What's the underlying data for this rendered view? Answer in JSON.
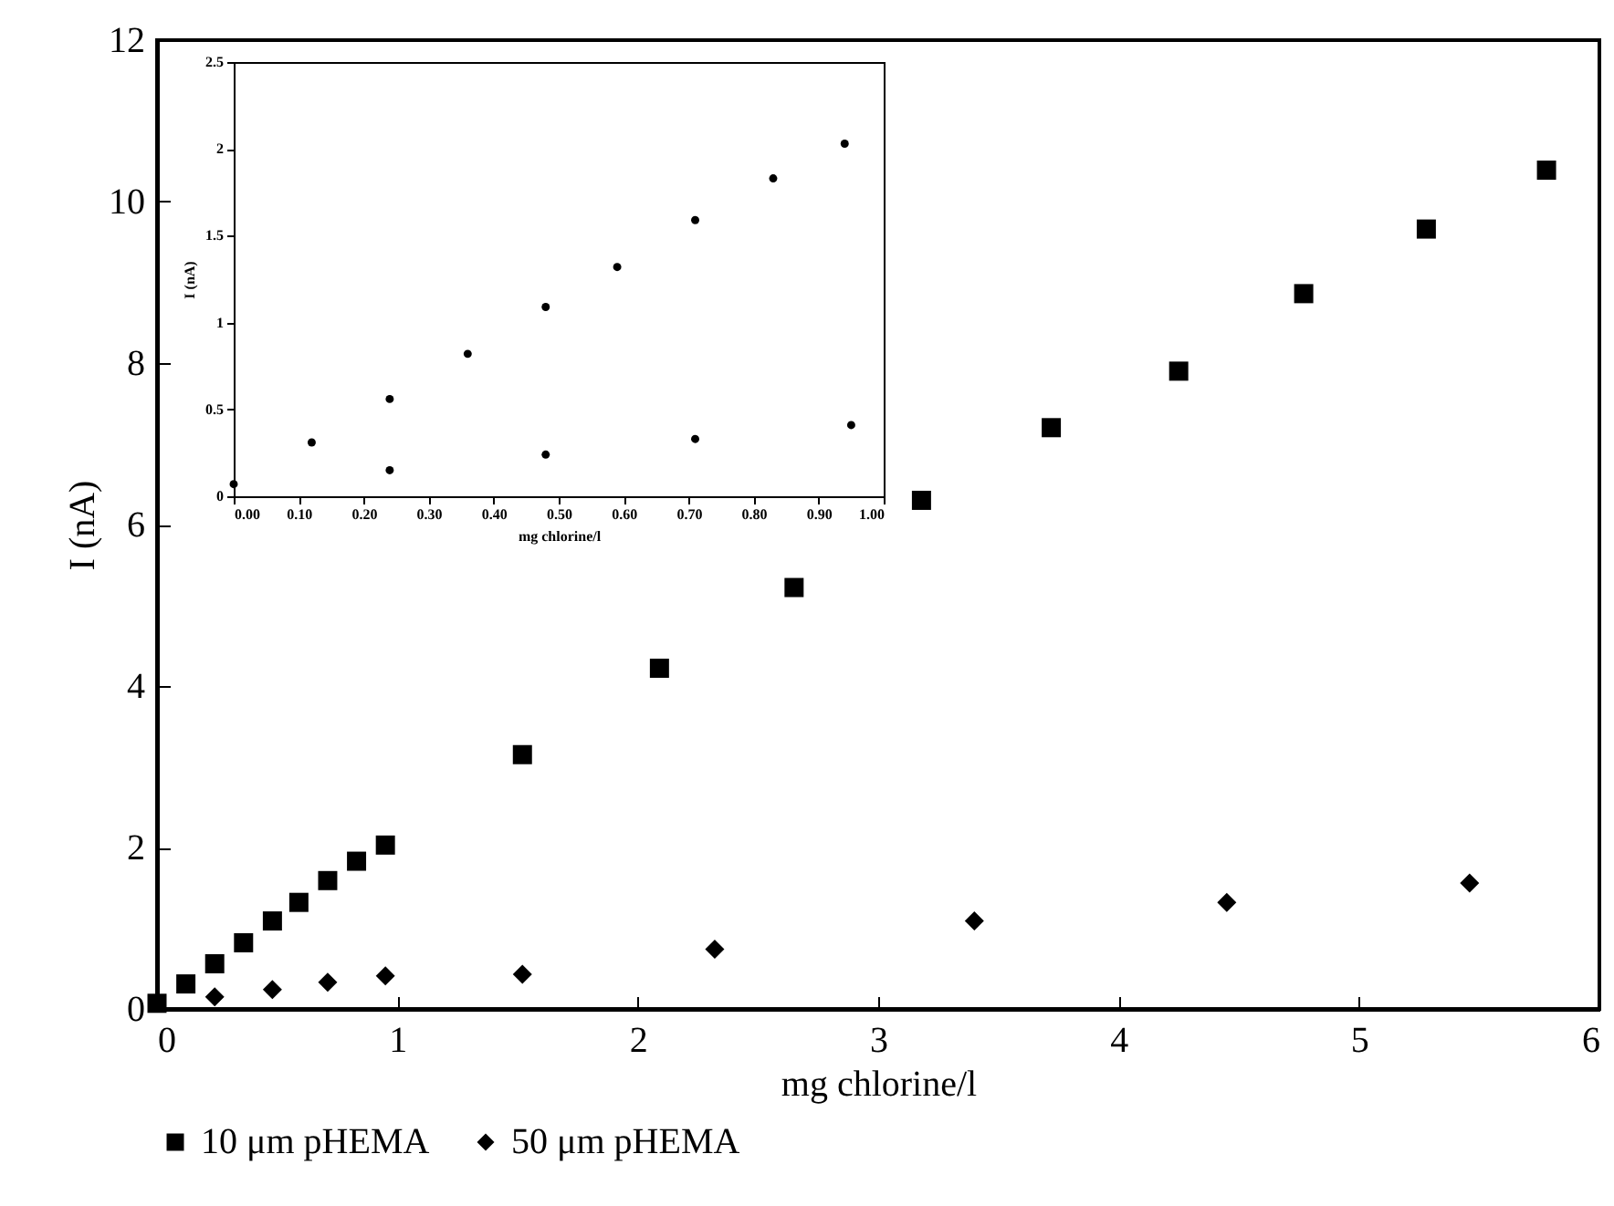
{
  "chart_data": [
    {
      "type": "scatter",
      "xlabel": "mg chlorine/l",
      "ylabel": "I (nA)",
      "xlim": [
        0,
        6
      ],
      "ylim": [
        0,
        12
      ],
      "xticks": [
        0,
        1,
        2,
        3,
        4,
        5,
        6
      ],
      "yticks": [
        0,
        2,
        4,
        6,
        8,
        10,
        12
      ],
      "legend": "bottom",
      "grid": false,
      "series": [
        {
          "name": "10 μm pHEMA",
          "color": "#000000",
          "marker": "square",
          "x": [
            0,
            0.12,
            0.24,
            0.36,
            0.48,
            0.59,
            0.71,
            0.83,
            0.95,
            1.52,
            2.09,
            2.65,
            3.18,
            3.72,
            4.25,
            4.77,
            5.28,
            5.78
          ],
          "values": [
            0.07,
            0.31,
            0.56,
            0.82,
            1.09,
            1.32,
            1.59,
            1.83,
            2.03,
            3.15,
            4.22,
            5.22,
            6.3,
            7.2,
            7.9,
            8.86,
            9.66,
            10.39
          ]
        },
        {
          "name": "50 μm pHEMA",
          "color": "#000000",
          "marker": "diamond",
          "x": [
            0.24,
            0.48,
            0.71,
            0.95,
            1.52,
            2.32,
            3.4,
            4.45,
            5.46
          ],
          "values": [
            0.15,
            0.24,
            0.33,
            0.41,
            0.43,
            0.74,
            1.09,
            1.32,
            1.56
          ]
        }
      ]
    },
    {
      "type": "scatter",
      "xlabel": "mg chlorine/l",
      "ylabel": "I (nA)",
      "xlim": [
        0,
        1
      ],
      "ylim": [
        0,
        2.5
      ],
      "xticks": [
        {
          "value": 0,
          "label": "0.00"
        },
        {
          "value": 0.1,
          "label": "0.10"
        },
        {
          "value": 0.2,
          "label": "0.20"
        },
        {
          "value": 0.3,
          "label": "0.30"
        },
        {
          "value": 0.4,
          "label": "0.40"
        },
        {
          "value": 0.5,
          "label": "0.50"
        },
        {
          "value": 0.6,
          "label": "0.60"
        },
        {
          "value": 0.7,
          "label": "0.70"
        },
        {
          "value": 0.8,
          "label": "0.80"
        },
        {
          "value": 0.9,
          "label": "0.90"
        },
        {
          "value": 1,
          "label": "1.00"
        }
      ],
      "yticks": [
        0,
        0.5,
        1,
        1.5,
        2,
        2.5
      ],
      "grid": false,
      "marker": "circle",
      "series": [
        {
          "color": "#000000",
          "x": [
            0,
            0.12,
            0.24,
            0.36,
            0.48,
            0.59,
            0.71,
            0.83,
            0.94
          ],
          "values": [
            0.07,
            0.31,
            0.56,
            0.82,
            1.09,
            1.32,
            1.59,
            1.83,
            2.03
          ]
        },
        {
          "color": "#000000",
          "x": [
            0.24,
            0.48,
            0.71,
            0.95
          ],
          "values": [
            0.15,
            0.24,
            0.33,
            0.41
          ]
        }
      ]
    }
  ]
}
